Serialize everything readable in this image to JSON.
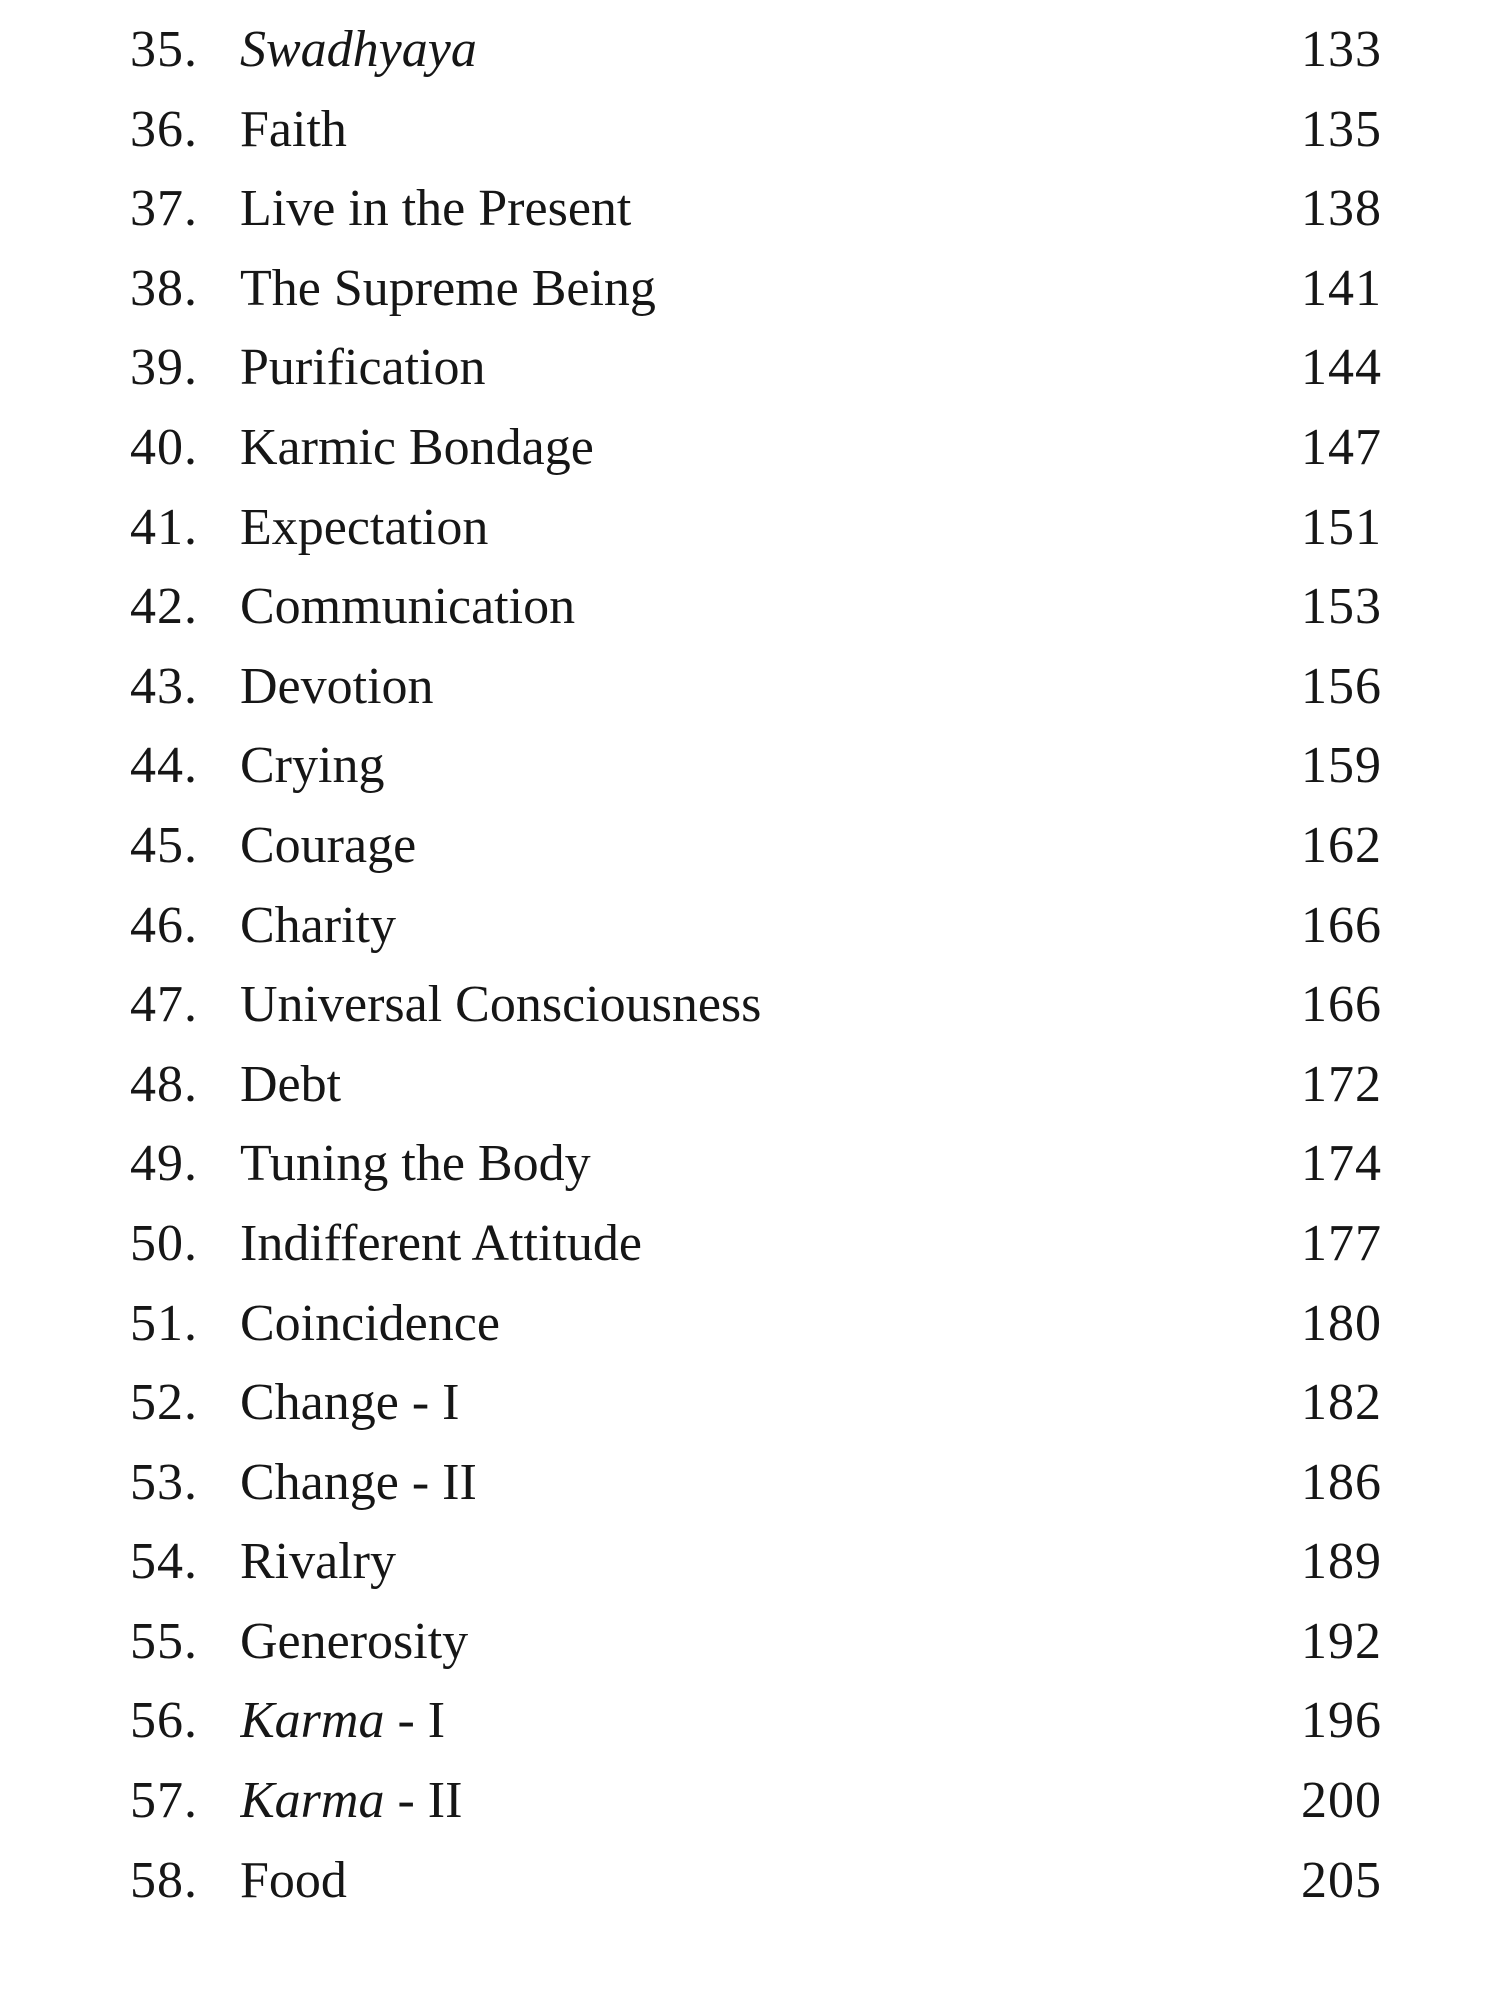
{
  "page": {
    "background": "#ffffff",
    "text_color": "#161616",
    "kind": "book-table-of-contents"
  },
  "toc": {
    "entries": [
      {
        "number": "35.",
        "title": "Swadhyaya",
        "italic": true,
        "suffix": "",
        "page": "133"
      },
      {
        "number": "36.",
        "title": "Faith",
        "italic": false,
        "suffix": "",
        "page": "135"
      },
      {
        "number": "37.",
        "title": "Live in the Present",
        "italic": false,
        "suffix": "",
        "page": "138"
      },
      {
        "number": "38.",
        "title": "The Supreme Being",
        "italic": false,
        "suffix": "",
        "page": "141"
      },
      {
        "number": "39.",
        "title": "Purification",
        "italic": false,
        "suffix": "",
        "page": "144"
      },
      {
        "number": "40.",
        "title": "Karmic Bondage",
        "italic": false,
        "suffix": "",
        "page": "147"
      },
      {
        "number": "41.",
        "title": "Expectation",
        "italic": false,
        "suffix": "",
        "page": "151"
      },
      {
        "number": "42.",
        "title": "Communication",
        "italic": false,
        "suffix": "",
        "page": "153"
      },
      {
        "number": "43.",
        "title": "Devotion",
        "italic": false,
        "suffix": "",
        "page": "156"
      },
      {
        "number": "44.",
        "title": "Crying",
        "italic": false,
        "suffix": "",
        "page": "159"
      },
      {
        "number": "45.",
        "title": "Courage",
        "italic": false,
        "suffix": "",
        "page": "162"
      },
      {
        "number": "46.",
        "title": "Charity",
        "italic": false,
        "suffix": "",
        "page": "166"
      },
      {
        "number": "47.",
        "title": "Universal Consciousness",
        "italic": false,
        "suffix": "",
        "page": "166"
      },
      {
        "number": "48.",
        "title": "Debt",
        "italic": false,
        "suffix": "",
        "page": "172"
      },
      {
        "number": "49.",
        "title": "Tuning the Body",
        "italic": false,
        "suffix": "",
        "page": "174"
      },
      {
        "number": "50.",
        "title": "Indifferent Attitude",
        "italic": false,
        "suffix": "",
        "page": "177"
      },
      {
        "number": "51.",
        "title": "Coincidence",
        "italic": false,
        "suffix": "",
        "page": "180"
      },
      {
        "number": "52.",
        "title": "Change - I",
        "italic": false,
        "suffix": "",
        "page": "182"
      },
      {
        "number": "53.",
        "title": "Change - II",
        "italic": false,
        "suffix": "",
        "page": "186"
      },
      {
        "number": "54.",
        "title": "Rivalry",
        "italic": false,
        "suffix": "",
        "page": "189"
      },
      {
        "number": "55.",
        "title": "Generosity",
        "italic": false,
        "suffix": "",
        "page": "192"
      },
      {
        "number": "56.",
        "title": "Karma",
        "italic": true,
        "suffix": " - I",
        "page": "196"
      },
      {
        "number": "57.",
        "title": "Karma",
        "italic": true,
        "suffix": " - II",
        "page": "200"
      },
      {
        "number": "58.",
        "title": "Food",
        "italic": false,
        "suffix": "",
        "page": "205"
      }
    ]
  }
}
